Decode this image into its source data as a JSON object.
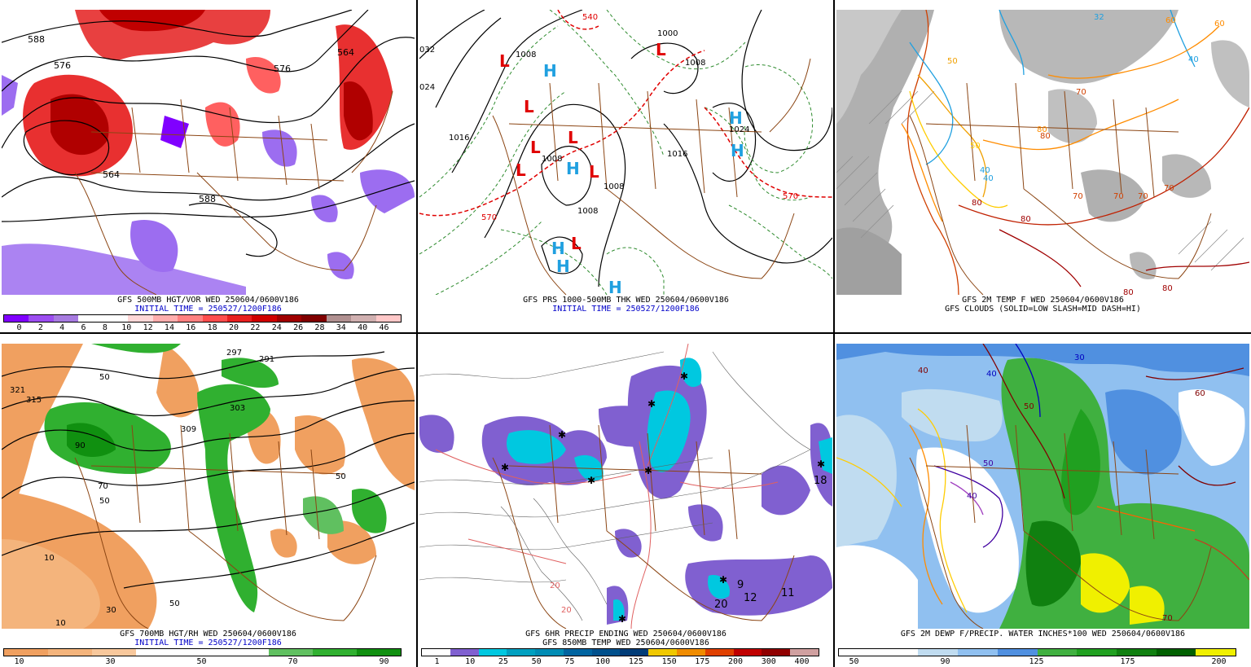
{
  "panels": [
    {
      "id": "p500",
      "caption1": "GFS 500MB HGT/VOR WED 250604/0600V186",
      "caption2": "INITIAL TIME = 250527/1200F186",
      "colorbar": {
        "colors": [
          "#8000ff",
          "#9c4df0",
          "#a77be0",
          "#ffffff",
          "#ffffff",
          "#ffd7d7",
          "#ffadad",
          "#ff8080",
          "#ff4d4d",
          "#e82020",
          "#d00000",
          "#a00000",
          "#800000",
          "#b09090",
          "#d0b0b0",
          "#ffc8c8"
        ],
        "labels": [
          "0",
          "2",
          "4",
          "6",
          "8",
          "10",
          "12",
          "14",
          "16",
          "18",
          "20",
          "22",
          "24",
          "26",
          "28",
          "34",
          "40",
          "46"
        ]
      },
      "labels": [
        "588",
        "576",
        "564",
        "564",
        "576",
        "588"
      ]
    },
    {
      "id": "pprs",
      "caption1": "GFS PRS 1000-500MB THK WED 250604/0600V186",
      "caption2": "INITIAL TIME = 250527/1200F186",
      "labels": [
        "032",
        "024",
        "1016",
        "1008",
        "1008",
        "1000",
        "1008",
        "1016",
        "1024",
        "1008",
        "1008",
        "570",
        "570",
        "540"
      ],
      "highs": [
        "H",
        "H",
        "H",
        "H",
        "H",
        "H",
        "H"
      ],
      "lows": [
        "L",
        "L",
        "L",
        "L",
        "L",
        "L",
        "L",
        "L"
      ]
    },
    {
      "id": "p2mt",
      "caption1": "GFS 2M TEMP F WED 250604/0600V186",
      "caption2": "GFS CLOUDS (SOLID=LOW SLASH=MID DASH=HI)",
      "labels": [
        "32",
        "40",
        "40",
        "50",
        "70",
        "70",
        "80",
        "80",
        "80",
        "70",
        "60",
        "60",
        "50",
        "40",
        "70",
        "80",
        "80",
        "70",
        "80"
      ]
    },
    {
      "id": "p700",
      "caption1": "GFS 700MB HGT/RH WED 250604/0600V186",
      "caption2": "INITIAL TIME = 250527/1200F186",
      "colorbar": {
        "colors": [
          "#f0a060",
          "#f4b47c",
          "#f8c89c",
          "#ffffff",
          "#ffffff",
          "#ffffff",
          "#60c060",
          "#30b030",
          "#109010"
        ],
        "labels": [
          "10",
          "30",
          "50",
          "70",
          "90"
        ]
      },
      "labels": [
        "321",
        "315",
        "309",
        "303",
        "297",
        "291",
        "50",
        "50",
        "10",
        "10",
        "30",
        "50",
        "90",
        "70",
        "50"
      ]
    },
    {
      "id": "pprecip",
      "caption1": "GFS 6HR PRECIP ENDING WED 250604/0600V186",
      "caption2": "GFS 850MB TEMP WED 250604/0600V186",
      "colorbar": {
        "colors": [
          "#ffffff",
          "#8060d0",
          "#00c8e0",
          "#00a0c0",
          "#008cb4",
          "#0064a0",
          "#00508c",
          "#003c78",
          "#f0c800",
          "#f08c00",
          "#e04000",
          "#c00000",
          "#900000",
          "#d0a0a0"
        ],
        "labels": [
          "1",
          "10",
          "25",
          "50",
          "75",
          "100",
          "125",
          "150",
          "175",
          "200",
          "300",
          "400"
        ]
      },
      "labels": [
        "18",
        "20",
        "12",
        "9",
        "11",
        "20",
        "20"
      ]
    },
    {
      "id": "pdewp",
      "caption1": "GFS 2M DEWP F/PRECIP. WATER INCHES*100 WED 250604/0600V186",
      "caption2": "",
      "colorbar": {
        "colors": [
          "#ffffff",
          "#ffffff",
          "#c0dcf0",
          "#90c0f0",
          "#5090e0",
          "#40b040",
          "#20a020",
          "#108010",
          "#006000",
          "#f0f000"
        ],
        "labels": [
          "50",
          "90",
          "125",
          "175",
          "200"
        ]
      },
      "labels": [
        "30",
        "40",
        "40",
        "50",
        "60",
        "70",
        "50",
        "40"
      ]
    }
  ]
}
